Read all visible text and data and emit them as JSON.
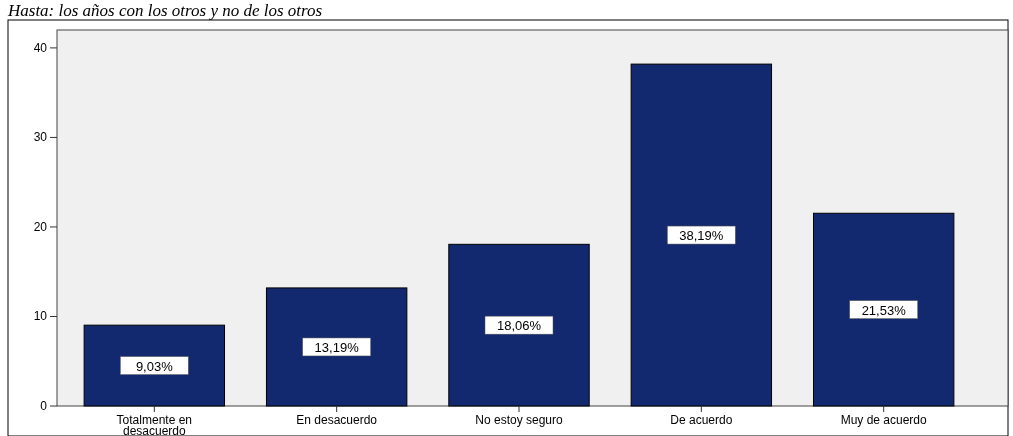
{
  "chart_data": {
    "type": "bar",
    "title": "Hasta: los años con los otros y no de los otros",
    "categories": [
      "Totalmente en desacuerdo",
      "En desacuerdo",
      "No estoy seguro",
      "De acuerdo",
      "Muy de acuerdo"
    ],
    "values": [
      9.03,
      13.19,
      18.06,
      38.19,
      21.53
    ],
    "value_labels": [
      "9,03%",
      "13,19%",
      "18,06%",
      "38,19%",
      "21,53%"
    ],
    "color": "#13296f",
    "ylim": [
      0,
      42
    ],
    "yticks": [
      0,
      10,
      20,
      30,
      40
    ],
    "grid": false
  }
}
